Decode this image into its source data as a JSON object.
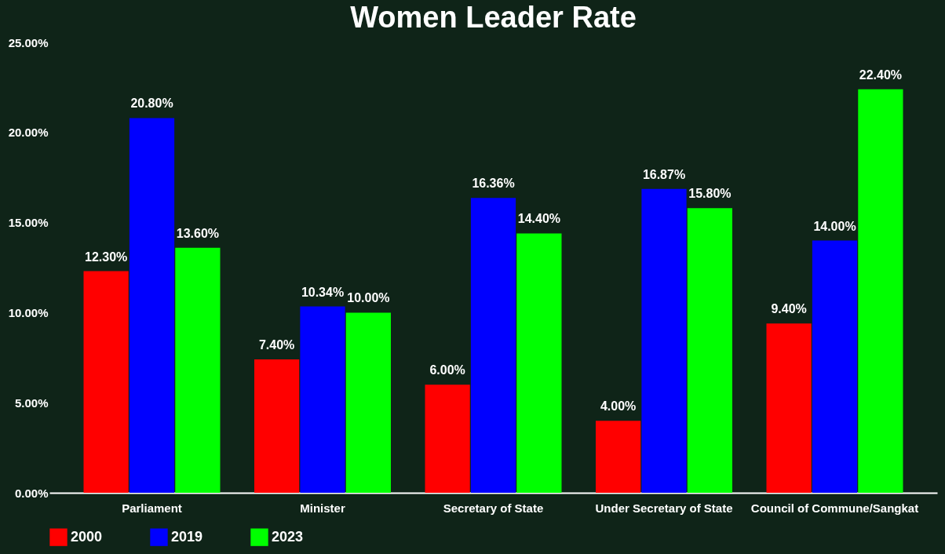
{
  "chart_data": {
    "type": "bar",
    "title": "Women Leader Rate",
    "categories": [
      "Parliament",
      "Minister",
      "Secretary of State",
      "Under Secretary of State",
      "Council of Commune/Sangkat"
    ],
    "series": [
      {
        "name": "2000",
        "color": "#ff0000",
        "values": [
          12.3,
          7.4,
          6.0,
          4.0,
          9.4
        ],
        "value_labels": [
          "12.30%",
          "7.40%",
          "6.00%",
          "4.00%",
          "9.40%"
        ]
      },
      {
        "name": "2019",
        "color": "#0000ff",
        "values": [
          20.8,
          10.34,
          16.36,
          16.87,
          14.0
        ],
        "value_labels": [
          "20.80%",
          "10.34%",
          "16.36%",
          "16.87%",
          "14.00%"
        ]
      },
      {
        "name": "2023",
        "color": "#00ff00",
        "values": [
          13.6,
          10.0,
          14.4,
          15.8,
          22.4
        ],
        "value_labels": [
          "13.60%",
          "10.00%",
          "14.40%",
          "15.80%",
          "22.40%"
        ]
      }
    ],
    "ylim": [
      0,
      25
    ],
    "yticks": [
      {
        "value": 0,
        "label": "0.00%"
      },
      {
        "value": 5,
        "label": "5.00%"
      },
      {
        "value": 10,
        "label": "10.00%"
      },
      {
        "value": 15,
        "label": "15.00%"
      },
      {
        "value": 20,
        "label": "20.00%"
      },
      {
        "value": 25,
        "label": "25.00%"
      }
    ],
    "grid": false,
    "legend": "bottom"
  }
}
